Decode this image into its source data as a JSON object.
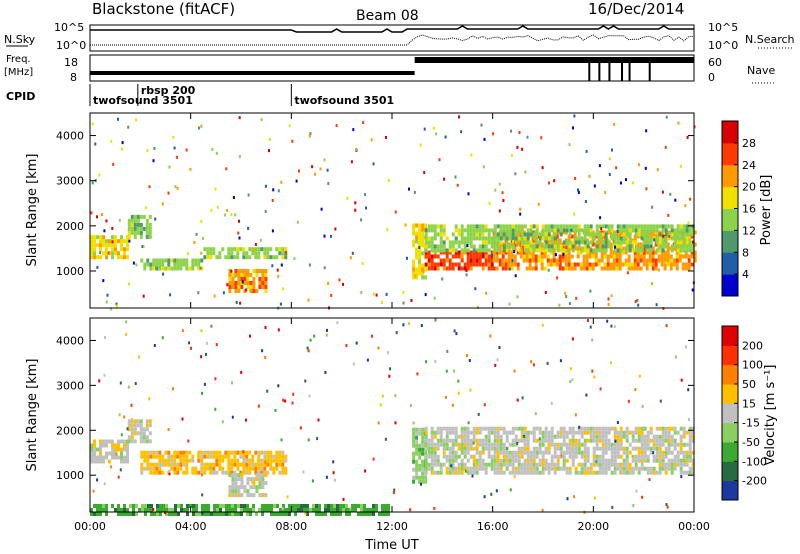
{
  "header": {
    "station": "Blackstone (fitACF)",
    "beam": "Beam 08",
    "date": "16/Dec/2014"
  },
  "param_panels": {
    "nsky_label": "N.Sky",
    "nsky_ticks": [
      "10^5",
      "10^0"
    ],
    "nsearch_label": "N.Search",
    "freq_label_1": "Freq.",
    "freq_label_2": "[MHz]",
    "freq_ticks": [
      "18",
      "8"
    ],
    "nave_label": "Nave",
    "nave_ticks": [
      "60",
      "0"
    ],
    "cpid_label": "CPID",
    "cpid_segments": [
      {
        "label": "twofsound 3501",
        "start_hour": 0.0
      },
      {
        "label": "rbsp 200",
        "start_hour": 1.9
      },
      {
        "label": "twofsound 3501",
        "start_hour": 8.0
      }
    ],
    "nave_switch_hour": 12.9
  },
  "chart_data": [
    {
      "type": "heatmap",
      "name": "power",
      "xlabel": "",
      "ylabel": "Slant Range [km]",
      "xlim": [
        0,
        24
      ],
      "ylim": [
        180,
        4500
      ],
      "yticks": [
        1000,
        2000,
        3000,
        4000
      ],
      "colorbar": {
        "label": "Power [dB]",
        "ticks": [
          "4",
          "8",
          "12",
          "16",
          "20",
          "24",
          "28"
        ],
        "colors": [
          "#0000d0",
          "#1f5fa8",
          "#4f9a6a",
          "#8cd24a",
          "#f0e000",
          "#ff9a00",
          "#ff3a00",
          "#d80000"
        ]
      },
      "bands": [
        {
          "x": [
            0.0,
            1.5
          ],
          "y": [
            1350,
            1800
          ],
          "level": 4
        },
        {
          "x": [
            1.5,
            2.4
          ],
          "y": [
            1800,
            2300
          ],
          "level": 3
        },
        {
          "x": [
            2.0,
            4.5
          ],
          "y": [
            1100,
            1350
          ],
          "level": 3
        },
        {
          "x": [
            4.5,
            7.8
          ],
          "y": [
            1350,
            1600
          ],
          "level": 3
        },
        {
          "x": [
            5.5,
            7.0
          ],
          "y": [
            600,
            1100
          ],
          "level": 5
        },
        {
          "x": [
            12.8,
            13.3
          ],
          "y": [
            900,
            2100
          ],
          "level": 4
        },
        {
          "x": [
            13.3,
            16.0
          ],
          "y": [
            1100,
            1500
          ],
          "level": 6
        },
        {
          "x": [
            16.0,
            24.0
          ],
          "y": [
            1100,
            1900
          ],
          "level": 5
        },
        {
          "x": [
            13.3,
            24.0
          ],
          "y": [
            1500,
            2100
          ],
          "level": 3
        }
      ],
      "scatter_density": 0.35
    },
    {
      "type": "heatmap",
      "name": "velocity",
      "xlabel": "Time UT",
      "ylabel": "Slant Range [km]",
      "xlim": [
        0,
        24
      ],
      "ylim": [
        180,
        4500
      ],
      "xticks": [
        "00:00",
        "04:00",
        "08:00",
        "12:00",
        "16:00",
        "20:00",
        "00:00"
      ],
      "yticks": [
        1000,
        2000,
        3000,
        4000
      ],
      "colorbar": {
        "label": "Velocity [m s⁻¹]",
        "ticks": [
          "200",
          "100",
          "50",
          "15",
          "-15",
          "-50",
          "-100",
          "-200"
        ],
        "colors": [
          "#1a3aa0",
          "#2a6a40",
          "#3aaa30",
          "#8ad060",
          "#c0c0c0",
          "#ffc000",
          "#ff8000",
          "#ff3000",
          "#e00000"
        ]
      },
      "bands": [
        {
          "x": [
            0.0,
            1.5
          ],
          "y": [
            1350,
            1800
          ],
          "level": 4
        },
        {
          "x": [
            1.5,
            2.4
          ],
          "y": [
            1800,
            2300
          ],
          "level": 4
        },
        {
          "x": [
            2.0,
            7.8
          ],
          "y": [
            1100,
            1600
          ],
          "level": 5
        },
        {
          "x": [
            5.5,
            7.0
          ],
          "y": [
            600,
            1100
          ],
          "level": 4
        },
        {
          "x": [
            0.0,
            12.0
          ],
          "y": [
            180,
            400
          ],
          "level": 2
        },
        {
          "x": [
            12.8,
            13.3
          ],
          "y": [
            900,
            2100
          ],
          "level": 3
        },
        {
          "x": [
            13.3,
            24.0
          ],
          "y": [
            1100,
            2100
          ],
          "level": 4
        }
      ],
      "scatter_density": 0.25
    }
  ]
}
